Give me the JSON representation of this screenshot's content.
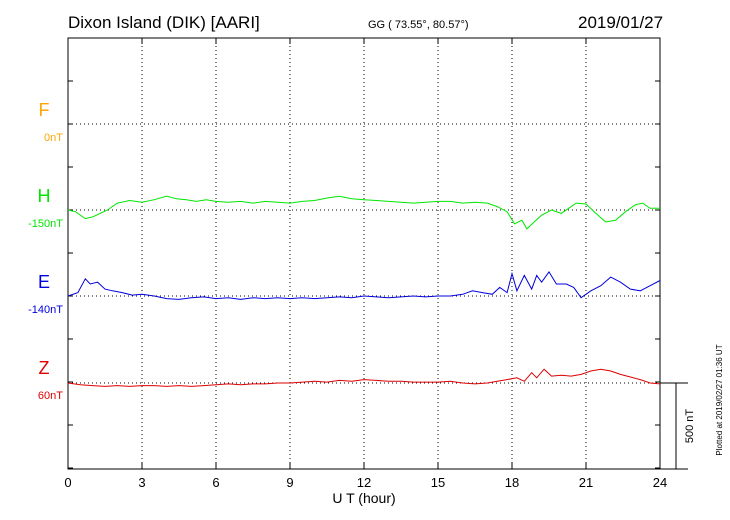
{
  "header": {
    "station": "Dixon Island (DIK)  [AARI]",
    "coords": "GG ( 73.55°,  80.57°)",
    "date": "2019/01/27"
  },
  "side_note": "Plotted at 2019/02/27 01:36 UT",
  "colors": {
    "F": "#ffa500",
    "H": "#00e600",
    "E": "#0000dd",
    "Z": "#dd0000",
    "grid": "#000000"
  },
  "chart_data": {
    "type": "line",
    "xlabel": "U T (hour)",
    "xlim": [
      0,
      24
    ],
    "xticks": [
      "0",
      "3",
      "6",
      "9",
      "12",
      "15",
      "18",
      "21",
      "24"
    ],
    "scale_bar": {
      "label": "500 nT",
      "value_nT": 500
    },
    "units": "nT",
    "series": [
      {
        "name": "F",
        "baseline_label": "0nT",
        "color": "#ffa500",
        "points": []
      },
      {
        "name": "H",
        "baseline_label": "-150nT",
        "color": "#00e600",
        "points": [
          [
            0,
            -150
          ],
          [
            0.3,
            -160
          ],
          [
            0.7,
            -200
          ],
          [
            1.0,
            -190
          ],
          [
            1.3,
            -170
          ],
          [
            1.6,
            -150
          ],
          [
            2.0,
            -110
          ],
          [
            2.5,
            -95
          ],
          [
            3.0,
            -105
          ],
          [
            3.5,
            -90
          ],
          [
            4.0,
            -70
          ],
          [
            4.4,
            -85
          ],
          [
            4.8,
            -90
          ],
          [
            5.2,
            -100
          ],
          [
            5.6,
            -90
          ],
          [
            6.0,
            -100
          ],
          [
            6.5,
            -105
          ],
          [
            7.0,
            -100
          ],
          [
            7.5,
            -110
          ],
          [
            8.0,
            -100
          ],
          [
            8.5,
            -105
          ],
          [
            9.0,
            -110
          ],
          [
            9.5,
            -100
          ],
          [
            10.0,
            -95
          ],
          [
            10.5,
            -80
          ],
          [
            11.0,
            -70
          ],
          [
            11.5,
            -85
          ],
          [
            12.0,
            -90
          ],
          [
            12.5,
            -95
          ],
          [
            13.0,
            -100
          ],
          [
            13.5,
            -105
          ],
          [
            14.0,
            -110
          ],
          [
            14.5,
            -105
          ],
          [
            15.0,
            -100
          ],
          [
            15.5,
            -100
          ],
          [
            16.0,
            -110
          ],
          [
            16.5,
            -105
          ],
          [
            17.0,
            -110
          ],
          [
            17.4,
            -130
          ],
          [
            17.8,
            -160
          ],
          [
            18.1,
            -230
          ],
          [
            18.4,
            -210
          ],
          [
            18.6,
            -260
          ],
          [
            18.9,
            -220
          ],
          [
            19.2,
            -180
          ],
          [
            19.6,
            -150
          ],
          [
            20.0,
            -170
          ],
          [
            20.3,
            -140
          ],
          [
            20.6,
            -110
          ],
          [
            21.0,
            -115
          ],
          [
            21.4,
            -170
          ],
          [
            21.8,
            -220
          ],
          [
            22.2,
            -210
          ],
          [
            22.6,
            -160
          ],
          [
            23.0,
            -120
          ],
          [
            23.3,
            -110
          ],
          [
            23.6,
            -140
          ],
          [
            24.0,
            -140
          ]
        ]
      },
      {
        "name": "E",
        "baseline_label": "-140nT",
        "color": "#0000dd",
        "points": [
          [
            0,
            -140
          ],
          [
            0.4,
            -120
          ],
          [
            0.7,
            -40
          ],
          [
            0.9,
            -70
          ],
          [
            1.2,
            -60
          ],
          [
            1.5,
            -100
          ],
          [
            1.8,
            -110
          ],
          [
            2.2,
            -120
          ],
          [
            2.6,
            -135
          ],
          [
            3.0,
            -130
          ],
          [
            3.5,
            -140
          ],
          [
            4.0,
            -155
          ],
          [
            4.5,
            -160
          ],
          [
            5.0,
            -150
          ],
          [
            5.5,
            -145
          ],
          [
            6.0,
            -155
          ],
          [
            6.5,
            -150
          ],
          [
            7.0,
            -160
          ],
          [
            7.5,
            -150
          ],
          [
            8.0,
            -155
          ],
          [
            8.5,
            -150
          ],
          [
            9.0,
            -155
          ],
          [
            9.5,
            -150
          ],
          [
            10.0,
            -155
          ],
          [
            10.5,
            -150
          ],
          [
            11.0,
            -145
          ],
          [
            11.5,
            -150
          ],
          [
            12.0,
            -140
          ],
          [
            12.5,
            -145
          ],
          [
            13.0,
            -150
          ],
          [
            13.5,
            -145
          ],
          [
            14.0,
            -140
          ],
          [
            14.5,
            -145
          ],
          [
            15.0,
            -140
          ],
          [
            15.5,
            -140
          ],
          [
            16.0,
            -130
          ],
          [
            16.4,
            -110
          ],
          [
            16.8,
            -120
          ],
          [
            17.2,
            -130
          ],
          [
            17.5,
            -90
          ],
          [
            17.8,
            -120
          ],
          [
            18.0,
            -10
          ],
          [
            18.2,
            -110
          ],
          [
            18.5,
            -20
          ],
          [
            18.8,
            -100
          ],
          [
            19.0,
            -20
          ],
          [
            19.2,
            -60
          ],
          [
            19.5,
            0
          ],
          [
            19.8,
            -70
          ],
          [
            20.2,
            -70
          ],
          [
            20.5,
            -90
          ],
          [
            20.8,
            -150
          ],
          [
            21.2,
            -110
          ],
          [
            21.6,
            -80
          ],
          [
            22.0,
            -30
          ],
          [
            22.4,
            -60
          ],
          [
            22.8,
            -100
          ],
          [
            23.2,
            -110
          ],
          [
            23.6,
            -80
          ],
          [
            24.0,
            -50
          ]
        ]
      },
      {
        "name": "Z",
        "baseline_label": "60nT",
        "color": "#dd0000",
        "points": [
          [
            0,
            60
          ],
          [
            0.5,
            50
          ],
          [
            1.0,
            45
          ],
          [
            1.5,
            40
          ],
          [
            2.0,
            45
          ],
          [
            2.5,
            40
          ],
          [
            3.0,
            45
          ],
          [
            3.5,
            45
          ],
          [
            4.0,
            40
          ],
          [
            4.5,
            45
          ],
          [
            5.0,
            40
          ],
          [
            5.5,
            45
          ],
          [
            6.0,
            50
          ],
          [
            6.5,
            55
          ],
          [
            7.0,
            50
          ],
          [
            7.5,
            55
          ],
          [
            8.0,
            55
          ],
          [
            8.5,
            60
          ],
          [
            9.0,
            60
          ],
          [
            9.5,
            65
          ],
          [
            10.0,
            70
          ],
          [
            10.5,
            65
          ],
          [
            11.0,
            75
          ],
          [
            11.5,
            70
          ],
          [
            12.0,
            80
          ],
          [
            12.5,
            75
          ],
          [
            13.0,
            70
          ],
          [
            13.5,
            70
          ],
          [
            14.0,
            65
          ],
          [
            14.5,
            65
          ],
          [
            15.0,
            65
          ],
          [
            15.5,
            70
          ],
          [
            16.0,
            60
          ],
          [
            16.5,
            55
          ],
          [
            17.0,
            60
          ],
          [
            17.4,
            70
          ],
          [
            17.8,
            80
          ],
          [
            18.2,
            90
          ],
          [
            18.5,
            70
          ],
          [
            18.8,
            120
          ],
          [
            19.0,
            90
          ],
          [
            19.3,
            140
          ],
          [
            19.6,
            100
          ],
          [
            20.0,
            105
          ],
          [
            20.4,
            100
          ],
          [
            20.8,
            110
          ],
          [
            21.2,
            130
          ],
          [
            21.6,
            140
          ],
          [
            22.0,
            130
          ],
          [
            22.4,
            110
          ],
          [
            22.8,
            95
          ],
          [
            23.2,
            80
          ],
          [
            23.6,
            60
          ],
          [
            24.0,
            55
          ]
        ]
      }
    ]
  }
}
